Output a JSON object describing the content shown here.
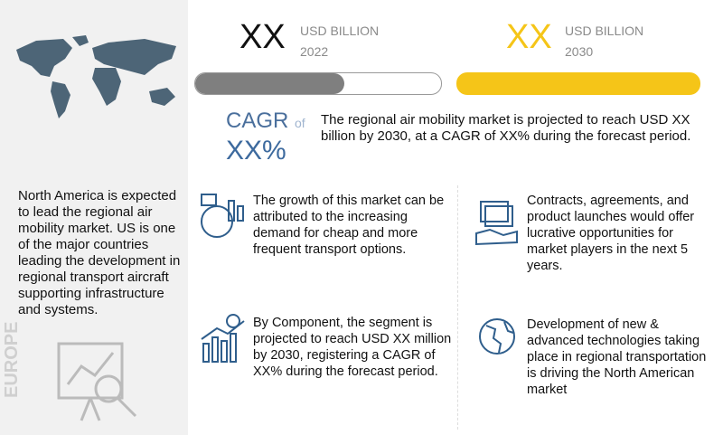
{
  "market_size": [
    {
      "value": "XX",
      "unit": "USD BILLION",
      "year": "2022"
    },
    {
      "value": "XX",
      "unit": "USD BILLION",
      "year": "2030"
    }
  ],
  "cagr": {
    "label": "CAGR",
    "connector": "of",
    "value": "XX%"
  },
  "summary": "The regional air mobility market is projected to reach USD XX billion by 2030, at a CAGR of XX% during the forecast period.",
  "region_note": "North America is expected to lead the regional air mobility market. US is one of the major countries leading the development in regional transport aircraft supporting infrastructure and systems.",
  "region_label": "EUROPE",
  "insights": [
    "The growth of this market can be attributed to the increasing demand for cheap and more frequent transport options.",
    "Contracts, agreements, and product launches would offer lucrative opportunities for market players in the next 5 years.",
    "By Component, the segment is projected to reach USD XX million by 2030, registering a CAGR of XX% during the forecast period.",
    "Development of new & advanced technologies taking place in regional transportation is driving the North American market"
  ]
}
